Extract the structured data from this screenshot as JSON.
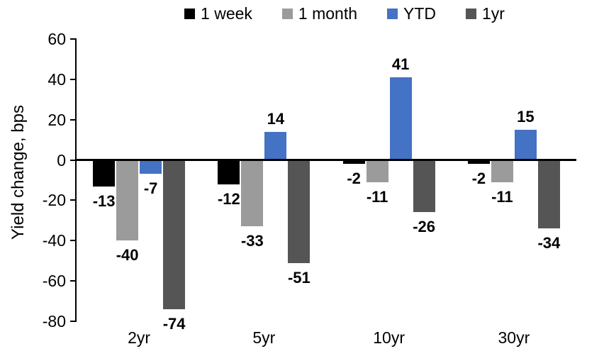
{
  "chart_data": {
    "type": "bar",
    "categories": [
      "2yr",
      "5yr",
      "10yr",
      "30yr"
    ],
    "series": [
      {
        "name": "1 week",
        "color": "#000000",
        "values": [
          -13,
          -12,
          -2,
          -2
        ]
      },
      {
        "name": "1 month",
        "color": "#9b9b9b",
        "values": [
          -40,
          -33,
          -11,
          -11
        ]
      },
      {
        "name": "YTD",
        "color": "#4472c4",
        "values": [
          -7,
          14,
          41,
          15
        ]
      },
      {
        "name": "1yr",
        "color": "#555555",
        "values": [
          -74,
          -51,
          -26,
          -34
        ]
      }
    ],
    "title": "",
    "xlabel": "",
    "ylabel": "Yield change, bps",
    "ylim": [
      -80,
      60
    ],
    "yticks": [
      60,
      40,
      20,
      0,
      -20,
      -40,
      -60,
      -80
    ],
    "grid": false,
    "data_labels": true,
    "legend_position": "top",
    "axis_color": "#000000"
  }
}
